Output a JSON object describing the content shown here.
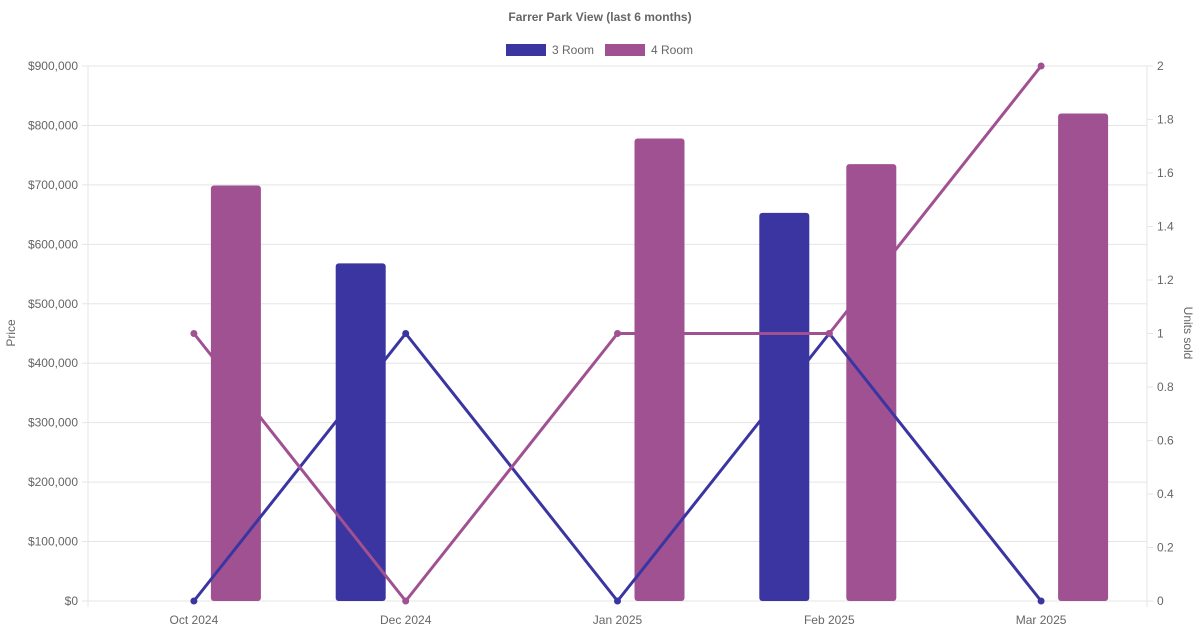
{
  "chart_data": {
    "type": "bar",
    "title": "Farrer Park View (last 6 months)",
    "categories": [
      "Oct 2024",
      "Dec 2024",
      "Jan 2025",
      "Feb 2025",
      "Mar 2025"
    ],
    "ylabel": "Price",
    "y2label": "Units sold",
    "ylim": [
      0,
      900000
    ],
    "y2lim": [
      0,
      2
    ],
    "yticks": [
      "$0",
      "$100,000",
      "$200,000",
      "$300,000",
      "$400,000",
      "$500,000",
      "$600,000",
      "$700,000",
      "$800,000",
      "$900,000"
    ],
    "y2ticks": [
      "0",
      "0.2",
      "0.4",
      "0.6",
      "0.8",
      "1",
      "1.2",
      "1.4",
      "1.6",
      "1.8",
      "2"
    ],
    "legend_position": "top-center",
    "grid": true,
    "series": [
      {
        "name": "3 Room",
        "color": "#3a35a1",
        "bar_values": [
          null,
          568000,
          null,
          653000,
          null
        ],
        "line_values": [
          0,
          1,
          0,
          1,
          0
        ]
      },
      {
        "name": "4 Room",
        "color": "#a05192",
        "bar_values": [
          699000,
          null,
          778000,
          735000,
          820000
        ],
        "line_values": [
          1,
          0,
          1,
          1,
          2
        ]
      }
    ]
  }
}
